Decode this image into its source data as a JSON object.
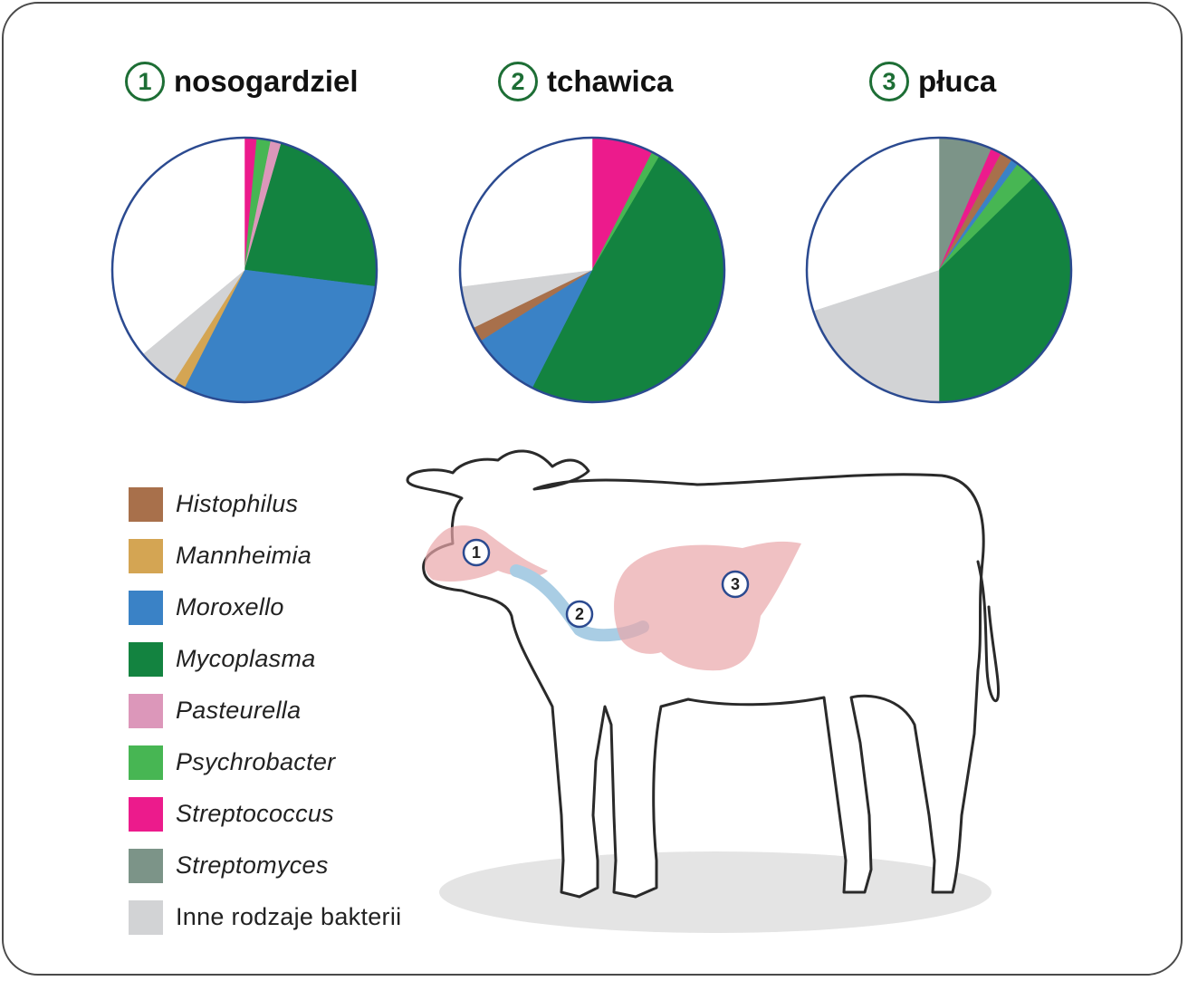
{
  "colors": {
    "Histophilus": "#a8704b",
    "Mannheimia": "#d4a553",
    "Moroxello": "#3a82c6",
    "Mycoplasma": "#138340",
    "Pasteurella": "#dc97ba",
    "Psychrobacter": "#47b653",
    "Streptococcus": "#ec1b8c",
    "Streptomyces": "#7c9488",
    "Inne rodzaje bakterii": "#d2d3d5",
    "empty": "#ffffff",
    "outline": "#2b4a90"
  },
  "legend": [
    {
      "label": "Histophilus",
      "italic": true
    },
    {
      "label": "Mannheimia",
      "italic": true
    },
    {
      "label": "Moroxello",
      "italic": true
    },
    {
      "label": "Mycoplasma",
      "italic": true
    },
    {
      "label": "Pasteurella",
      "italic": true
    },
    {
      "label": "Psychrobacter",
      "italic": true
    },
    {
      "label": "Streptococcus",
      "italic": true
    },
    {
      "label": "Streptomyces",
      "italic": true
    },
    {
      "label": "Inne rodzaje bakterii",
      "italic": false
    }
  ],
  "chart_data": [
    {
      "type": "pie",
      "number": "1",
      "title": "nosogardziel",
      "slices": [
        {
          "label": "Streptococcus",
          "value": 1.5
        },
        {
          "label": "Psychrobacter",
          "value": 1.7
        },
        {
          "label": "Pasteurella",
          "value": 1.3
        },
        {
          "label": "Mycoplasma",
          "value": 22.5
        },
        {
          "label": "Moroxello",
          "value": 30.5
        },
        {
          "label": "Mannheimia",
          "value": 1.5
        },
        {
          "label": "Inne rodzaje bakterii",
          "value": 5.0
        },
        {
          "label": "empty",
          "value": 36.0
        }
      ]
    },
    {
      "type": "pie",
      "number": "2",
      "title": "tchawica",
      "slices": [
        {
          "label": "Streptococcus",
          "value": 7.5
        },
        {
          "label": "Psychrobacter",
          "value": 1.0
        },
        {
          "label": "Mycoplasma",
          "value": 49.0
        },
        {
          "label": "Moroxello",
          "value": 8.5
        },
        {
          "label": "Histophilus",
          "value": 1.8
        },
        {
          "label": "Inne rodzaje bakterii",
          "value": 5.2
        },
        {
          "label": "empty",
          "value": 27.0
        }
      ]
    },
    {
      "type": "pie",
      "number": "3",
      "title": "płuca",
      "slices": [
        {
          "label": "Streptomyces",
          "value": 6.5
        },
        {
          "label": "Streptococcus",
          "value": 1.3
        },
        {
          "label": "Histophilus",
          "value": 1.5
        },
        {
          "label": "Moroxello",
          "value": 0.9
        },
        {
          "label": "Psychrobacter",
          "value": 2.5
        },
        {
          "label": "Mycoplasma",
          "value": 37.3
        },
        {
          "label": "Inne rodzaje bakterii",
          "value": 20.0
        },
        {
          "label": "empty",
          "value": 30.0
        }
      ]
    }
  ],
  "calf": {
    "markers": [
      "1",
      "2",
      "3"
    ]
  }
}
